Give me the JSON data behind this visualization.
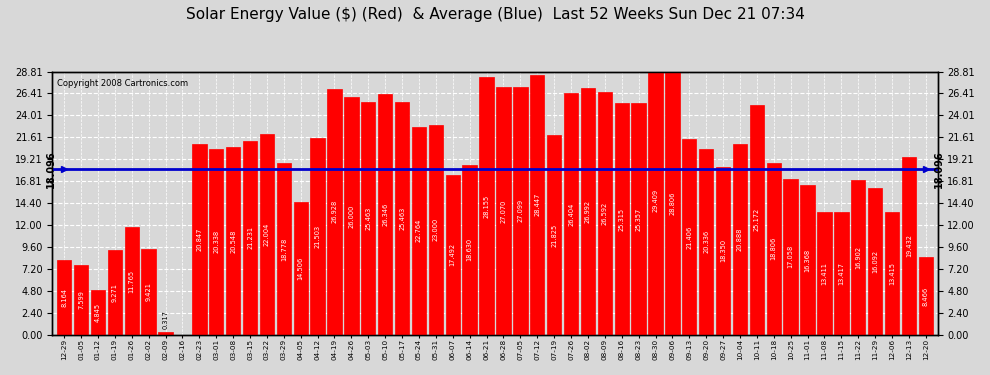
{
  "title": "Solar Energy Value ($) (Red)  & Average (Blue)  Last 52 Weeks Sun Dec 21 07:34",
  "copyright": "Copyright 2008 Cartronics.com",
  "average": 18.096,
  "bar_color": "#ff0000",
  "avg_line_color": "#0000cc",
  "background_color": "#d8d8d8",
  "plot_bg_color": "#d8d8d8",
  "grid_color": "#ffffff",
  "yticks": [
    0.0,
    2.4,
    4.8,
    7.2,
    9.6,
    12.0,
    14.4,
    16.81,
    19.21,
    21.61,
    24.01,
    26.41,
    28.81
  ],
  "ymax": 28.81,
  "categories": [
    "12-29",
    "01-05",
    "01-12",
    "01-19",
    "01-26",
    "02-02",
    "02-09",
    "02-16",
    "02-23",
    "03-01",
    "03-08",
    "03-15",
    "03-22",
    "03-29",
    "04-05",
    "04-12",
    "04-19",
    "04-26",
    "05-03",
    "05-10",
    "05-17",
    "05-24",
    "05-31",
    "06-07",
    "06-14",
    "06-21",
    "06-28",
    "07-05",
    "07-12",
    "07-19",
    "07-26",
    "08-02",
    "08-09",
    "08-16",
    "08-23",
    "08-30",
    "09-06",
    "09-13",
    "09-20",
    "09-27",
    "10-04",
    "10-11",
    "10-18",
    "10-25",
    "11-01",
    "11-08",
    "11-15",
    "11-22",
    "11-29",
    "12-06",
    "12-13",
    "12-20"
  ],
  "values": [
    8.164,
    7.599,
    4.845,
    9.271,
    11.765,
    9.421,
    0.317,
    0.0,
    20.847,
    20.338,
    20.548,
    21.231,
    22.004,
    18.778,
    14.506,
    21.503,
    26.928,
    26.0,
    25.463,
    26.346,
    25.463,
    22.764,
    23.0,
    17.492,
    18.63,
    28.155,
    27.07,
    27.099,
    28.447,
    21.825,
    26.404,
    26.992,
    26.592,
    25.315,
    25.357,
    29.409,
    28.806,
    21.406,
    20.336,
    18.35,
    20.888,
    25.172,
    18.806,
    17.058,
    16.368,
    13.411,
    13.417,
    16.902,
    16.092,
    13.415,
    19.432,
    8.466
  ],
  "label_fontsize": 5.2,
  "title_fontsize": 11,
  "bar_value_fontsize": 4.8
}
